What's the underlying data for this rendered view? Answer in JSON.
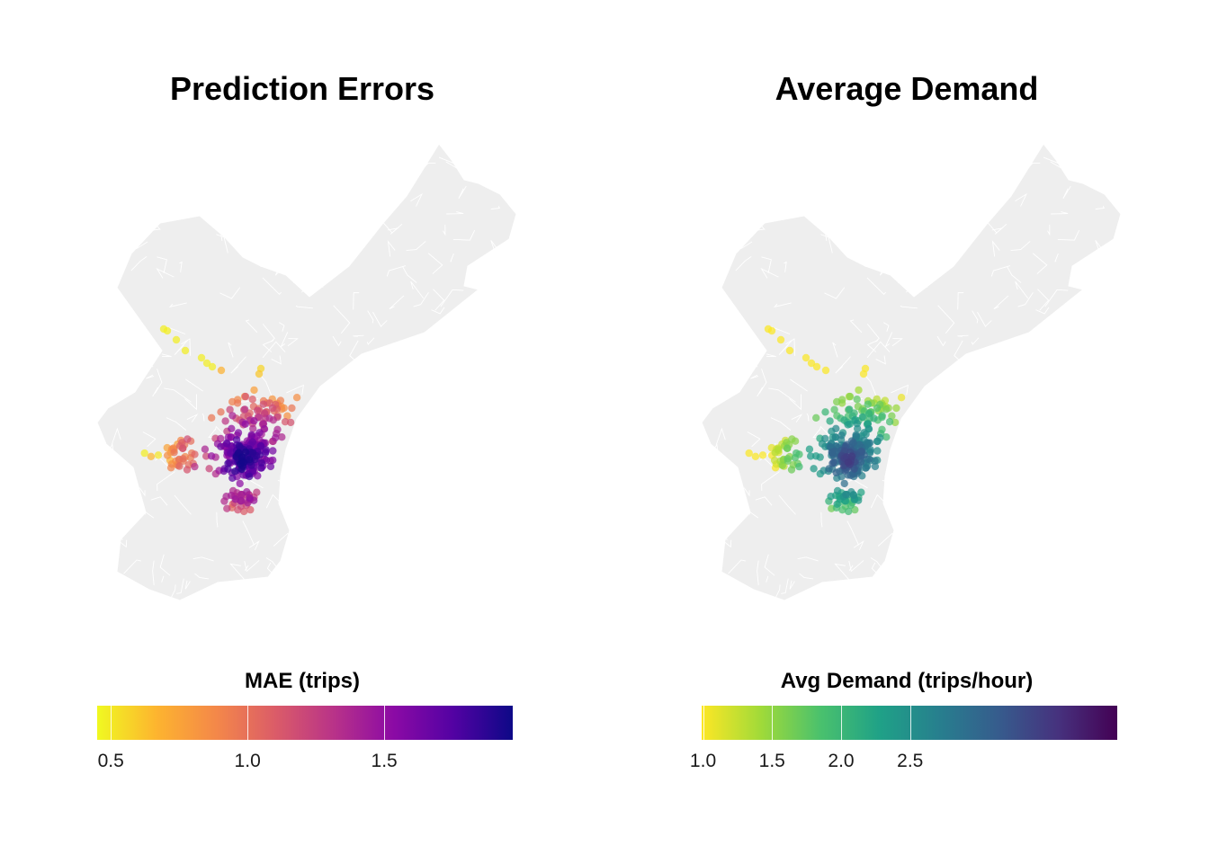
{
  "chart_data": [
    {
      "type": "map-scatter",
      "title": "Prediction Errors",
      "legend": {
        "title": "MAE (trips)",
        "min": 0.45,
        "max": 1.97,
        "ticks": [
          0.5,
          1.0,
          1.5
        ],
        "tick_labels": [
          "0.5",
          "1.0",
          "1.5"
        ],
        "palette": [
          "#f0f921",
          "#fdb42f",
          "#f48849",
          "#db5c68",
          "#b83289",
          "#8b0aa5",
          "#5302a3",
          "#0d0887"
        ]
      }
    },
    {
      "type": "map-scatter",
      "title": "Average Demand",
      "legend": {
        "title": "Avg Demand (trips/hour)",
        "min": 0.99,
        "max": 4.0,
        "ticks": [
          1.0,
          1.5,
          2.0,
          2.5
        ],
        "tick_labels": [
          "1.0",
          "1.5",
          "2.0",
          "2.5"
        ],
        "palette": [
          "#fde725",
          "#a0da39",
          "#4ac16d",
          "#1fa187",
          "#277f8e",
          "#365c8d",
          "#46327e",
          "#440154"
        ]
      }
    }
  ],
  "colors": {
    "basemap_fill": "#eeeeee",
    "basemap_stroke": "#ffffff"
  }
}
